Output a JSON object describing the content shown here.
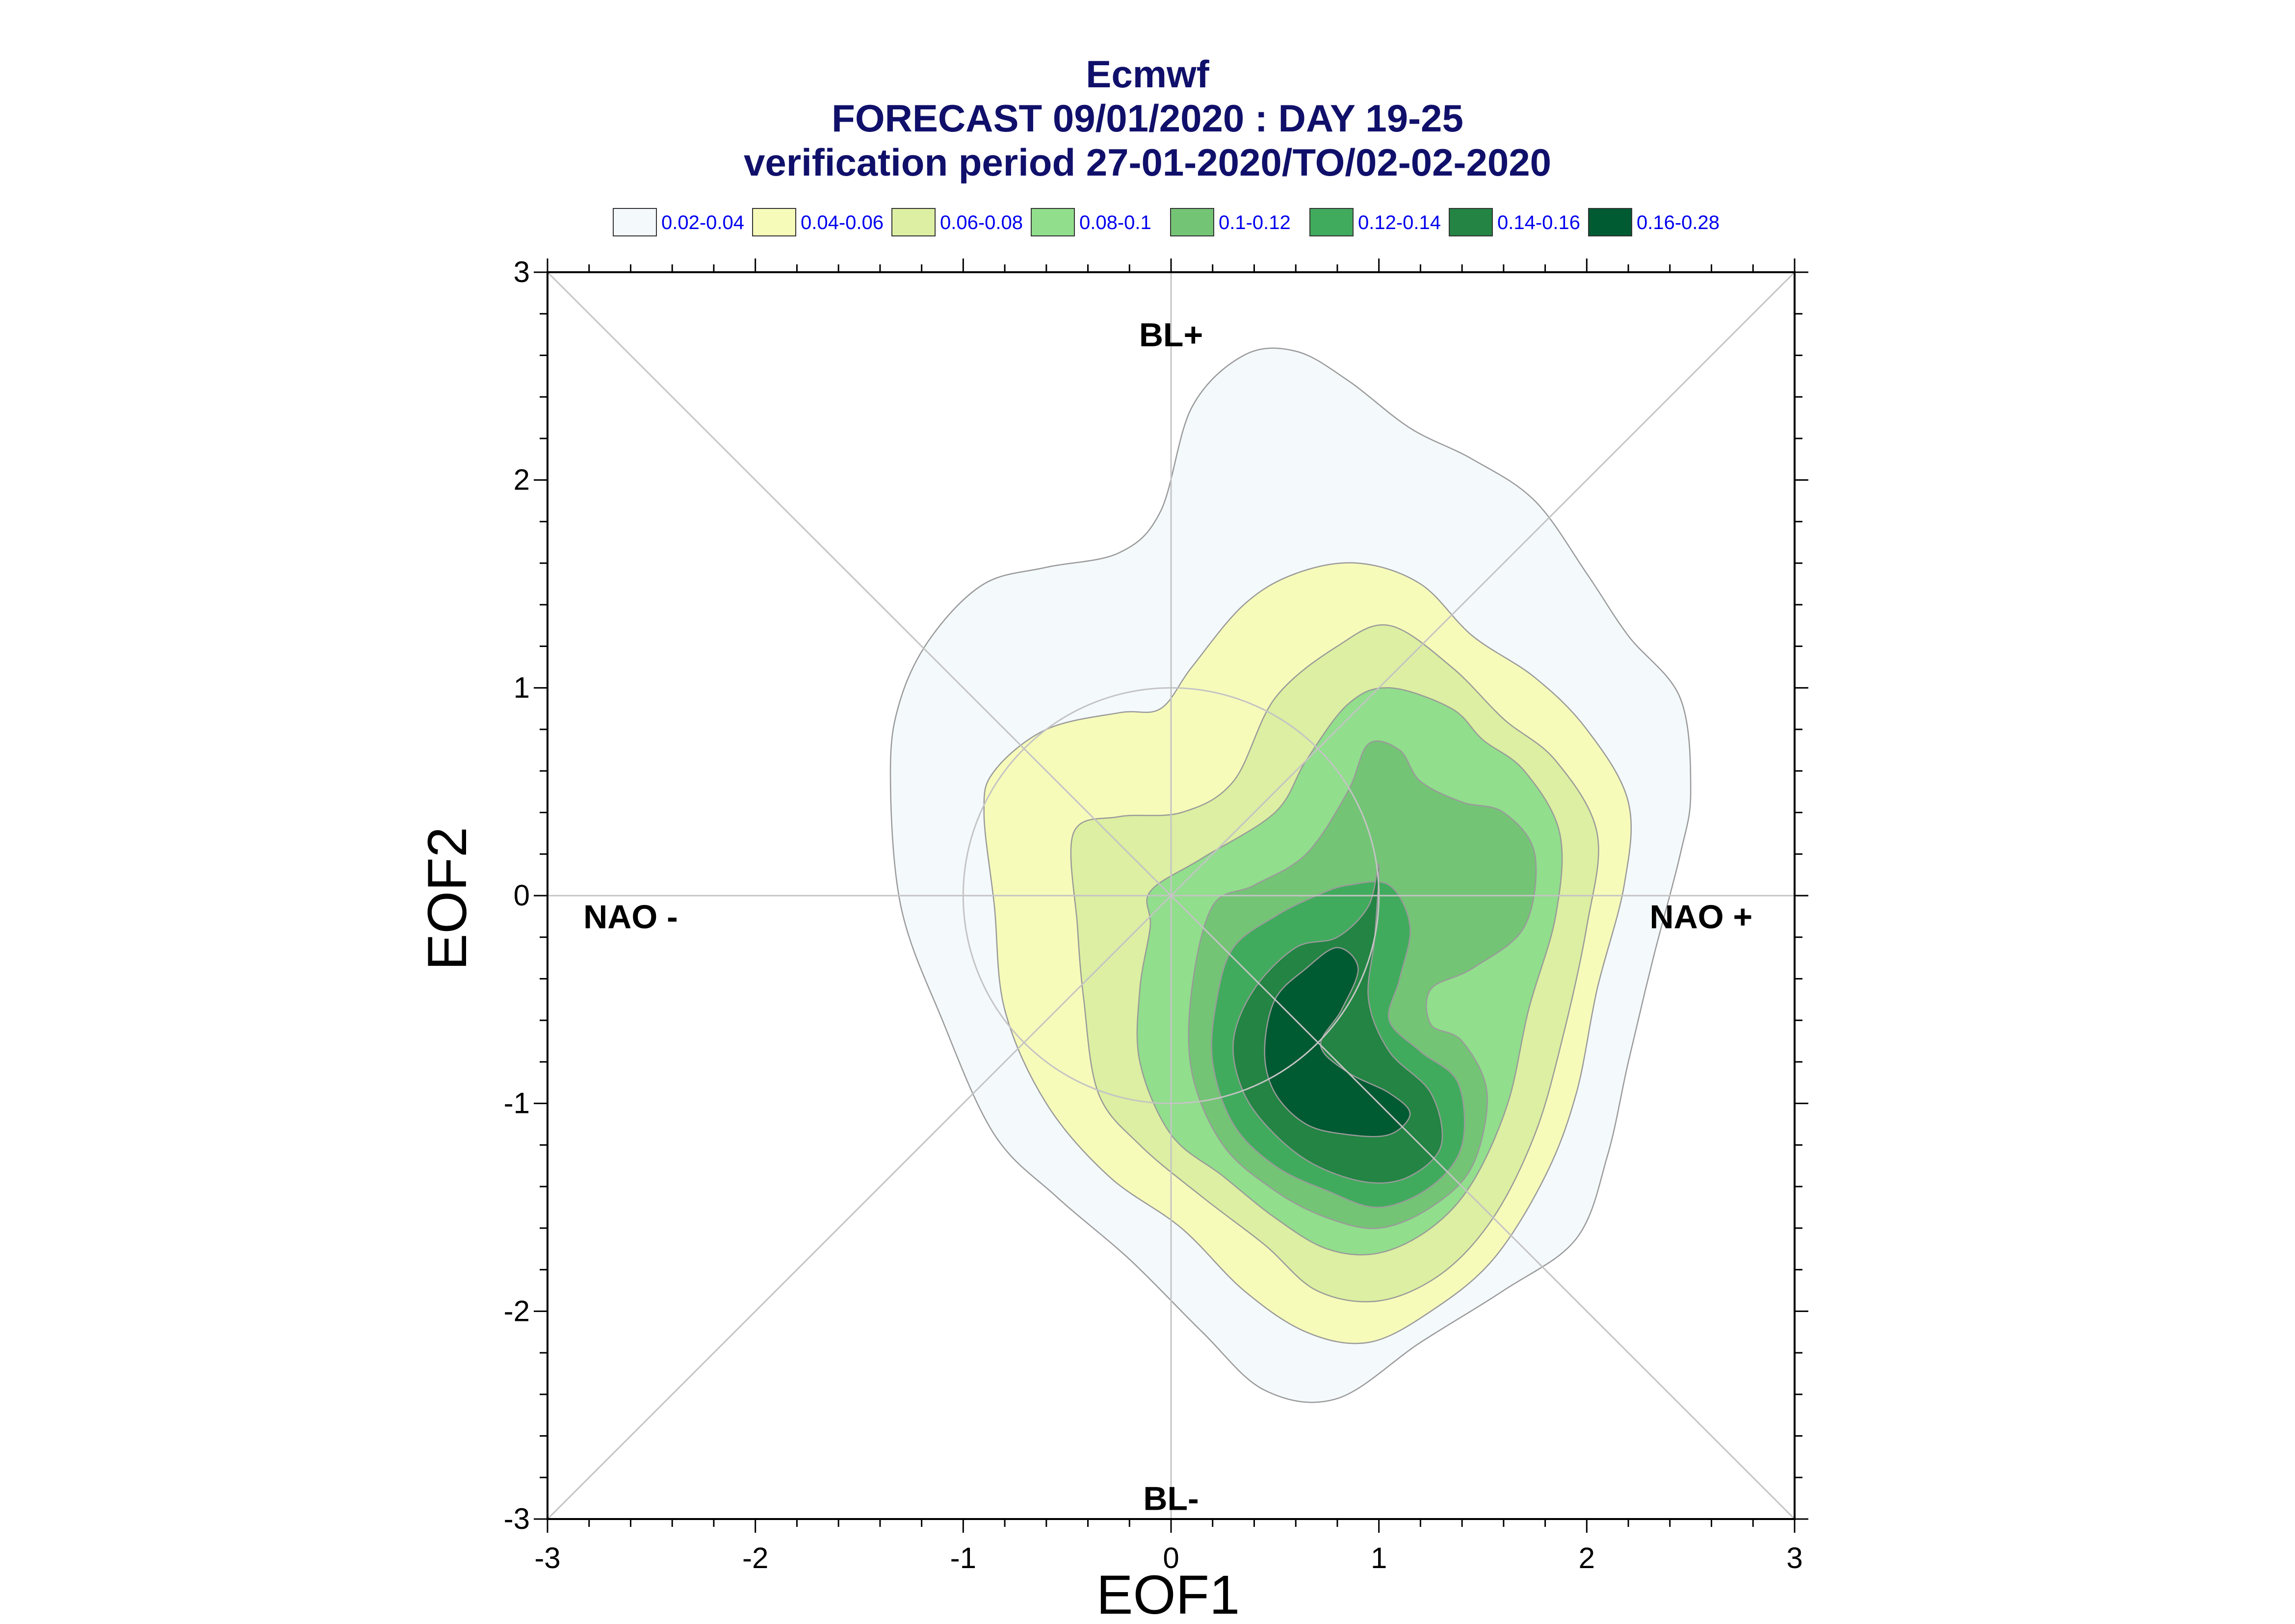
{
  "chart_data": {
    "type": "contour",
    "title_lines": [
      "Ecmwf",
      "FORECAST 09/01/2020 : DAY 19-25",
      "verification period 27-01-2020/TO/02-02-2020"
    ],
    "xlabel": "EOF1",
    "ylabel": "EOF2",
    "xlim": [
      -3,
      3
    ],
    "ylim": [
      -3,
      3
    ],
    "x_ticks": [
      -3,
      -2,
      -1,
      0,
      1,
      2,
      3
    ],
    "y_ticks": [
      -3,
      -2,
      -1,
      0,
      1,
      2,
      3
    ],
    "grid": false,
    "reference_lines": {
      "diagonals": true,
      "axes_through_origin": true,
      "unit_circle_radius": 1
    },
    "regime_labels": [
      {
        "text": "BL+",
        "x": 0,
        "y": 2.7
      },
      {
        "text": "BL-",
        "x": 0,
        "y": -2.9
      },
      {
        "text": "NAO -",
        "x": -2.6,
        "y": -0.1
      },
      {
        "text": "NAO +",
        "x": 2.55,
        "y": -0.1
      }
    ],
    "legend_position": "top",
    "levels": [
      {
        "label": "0.02-0.04",
        "color": "#f4f9fc"
      },
      {
        "label": "0.04-0.06",
        "color": "#f7fbba"
      },
      {
        "label": "0.06-0.08",
        "color": "#dcefa2"
      },
      {
        "label": "0.08-0.1",
        "color": "#91de8c"
      },
      {
        "label": "0.1-0.12",
        "color": "#74c476"
      },
      {
        "label": "0.12-0.14",
        "color": "#41ab5d"
      },
      {
        "label": "0.14-0.16",
        "color": "#238443"
      },
      {
        "label": "0.16-0.28",
        "color": "#005a32"
      }
    ],
    "contours": [
      {
        "level": "0.02-0.04",
        "points": [
          [
            -1.35,
            0.6
          ],
          [
            -1.3,
            0.95
          ],
          [
            -1.15,
            1.25
          ],
          [
            -0.9,
            1.5
          ],
          [
            -0.6,
            1.58
          ],
          [
            -0.25,
            1.65
          ],
          [
            -0.05,
            1.85
          ],
          [
            0.1,
            2.35
          ],
          [
            0.35,
            2.6
          ],
          [
            0.6,
            2.62
          ],
          [
            0.85,
            2.48
          ],
          [
            1.15,
            2.25
          ],
          [
            1.45,
            2.1
          ],
          [
            1.75,
            1.9
          ],
          [
            2.0,
            1.55
          ],
          [
            2.2,
            1.25
          ],
          [
            2.45,
            0.95
          ],
          [
            2.5,
            0.5
          ],
          [
            2.45,
            0.2
          ],
          [
            2.32,
            -0.3
          ],
          [
            2.2,
            -0.8
          ],
          [
            2.1,
            -1.25
          ],
          [
            1.95,
            -1.65
          ],
          [
            1.6,
            -1.9
          ],
          [
            1.2,
            -2.15
          ],
          [
            0.8,
            -2.42
          ],
          [
            0.45,
            -2.38
          ],
          [
            0.15,
            -2.1
          ],
          [
            -0.2,
            -1.75
          ],
          [
            -0.55,
            -1.45
          ],
          [
            -0.85,
            -1.15
          ],
          [
            -1.1,
            -0.6
          ],
          [
            -1.3,
            -0.05
          ]
        ]
      },
      {
        "level": "0.04-0.06",
        "points": [
          [
            -0.85,
            0.6
          ],
          [
            -0.6,
            0.8
          ],
          [
            -0.25,
            0.88
          ],
          [
            -0.05,
            0.9
          ],
          [
            0.1,
            1.1
          ],
          [
            0.35,
            1.4
          ],
          [
            0.6,
            1.55
          ],
          [
            0.9,
            1.6
          ],
          [
            1.2,
            1.5
          ],
          [
            1.45,
            1.25
          ],
          [
            1.75,
            1.05
          ],
          [
            2.0,
            0.8
          ],
          [
            2.2,
            0.45
          ],
          [
            2.18,
            0.05
          ],
          [
            2.05,
            -0.45
          ],
          [
            1.95,
            -0.95
          ],
          [
            1.8,
            -1.35
          ],
          [
            1.55,
            -1.75
          ],
          [
            1.25,
            -2.0
          ],
          [
            0.95,
            -2.15
          ],
          [
            0.65,
            -2.1
          ],
          [
            0.35,
            -1.9
          ],
          [
            0.05,
            -1.6
          ],
          [
            -0.3,
            -1.35
          ],
          [
            -0.6,
            -1.0
          ],
          [
            -0.8,
            -0.55
          ],
          [
            -0.85,
            -0.05
          ],
          [
            -0.9,
            0.4
          ]
        ]
      },
      {
        "level": "0.06-0.08",
        "points": [
          [
            -0.47,
            0.3
          ],
          [
            -0.25,
            0.38
          ],
          [
            0.05,
            0.4
          ],
          [
            0.3,
            0.55
          ],
          [
            0.5,
            0.95
          ],
          [
            0.8,
            1.2
          ],
          [
            1.05,
            1.3
          ],
          [
            1.35,
            1.1
          ],
          [
            1.6,
            0.85
          ],
          [
            1.85,
            0.65
          ],
          [
            2.05,
            0.3
          ],
          [
            2.0,
            -0.15
          ],
          [
            1.88,
            -0.7
          ],
          [
            1.75,
            -1.15
          ],
          [
            1.55,
            -1.55
          ],
          [
            1.3,
            -1.82
          ],
          [
            1.0,
            -1.95
          ],
          [
            0.7,
            -1.9
          ],
          [
            0.45,
            -1.68
          ],
          [
            0.15,
            -1.45
          ],
          [
            -0.15,
            -1.2
          ],
          [
            -0.35,
            -0.95
          ],
          [
            -0.42,
            -0.5
          ],
          [
            -0.45,
            -0.15
          ]
        ]
      },
      {
        "level": "0.08-0.1",
        "points": [
          [
            -0.1,
            0.02
          ],
          [
            0.15,
            0.18
          ],
          [
            0.5,
            0.4
          ],
          [
            0.65,
            0.65
          ],
          [
            0.85,
            0.92
          ],
          [
            1.05,
            1.0
          ],
          [
            1.35,
            0.9
          ],
          [
            1.5,
            0.75
          ],
          [
            1.7,
            0.6
          ],
          [
            1.87,
            0.3
          ],
          [
            1.85,
            -0.1
          ],
          [
            1.72,
            -0.55
          ],
          [
            1.62,
            -1.0
          ],
          [
            1.45,
            -1.38
          ],
          [
            1.25,
            -1.6
          ],
          [
            1.0,
            -1.72
          ],
          [
            0.75,
            -1.7
          ],
          [
            0.5,
            -1.55
          ],
          [
            0.25,
            -1.35
          ],
          [
            0.0,
            -1.15
          ],
          [
            -0.15,
            -0.8
          ],
          [
            -0.15,
            -0.45
          ],
          [
            -0.1,
            -0.15
          ]
        ]
      },
      {
        "level": "0.1-0.12",
        "points": [
          [
            0.2,
            -0.05
          ],
          [
            0.4,
            0.05
          ],
          [
            0.65,
            0.2
          ],
          [
            0.85,
            0.5
          ],
          [
            0.95,
            0.73
          ],
          [
            1.1,
            0.7
          ],
          [
            1.2,
            0.55
          ],
          [
            1.4,
            0.45
          ],
          [
            1.6,
            0.4
          ],
          [
            1.75,
            0.2
          ],
          [
            1.7,
            -0.15
          ],
          [
            1.45,
            -0.35
          ],
          [
            1.25,
            -0.45
          ],
          [
            1.25,
            -0.62
          ],
          [
            1.4,
            -0.7
          ],
          [
            1.52,
            -0.95
          ],
          [
            1.45,
            -1.3
          ],
          [
            1.25,
            -1.5
          ],
          [
            1.0,
            -1.6
          ],
          [
            0.75,
            -1.55
          ],
          [
            0.5,
            -1.42
          ],
          [
            0.25,
            -1.2
          ],
          [
            0.1,
            -0.85
          ],
          [
            0.1,
            -0.45
          ]
        ]
      },
      {
        "level": "0.12-0.14",
        "points": [
          [
            0.3,
            -0.25
          ],
          [
            0.5,
            -0.1
          ],
          [
            0.7,
            0.0
          ],
          [
            0.85,
            0.05
          ],
          [
            1.05,
            0.05
          ],
          [
            1.15,
            -0.15
          ],
          [
            1.1,
            -0.4
          ],
          [
            1.05,
            -0.6
          ],
          [
            1.2,
            -0.75
          ],
          [
            1.38,
            -0.9
          ],
          [
            1.4,
            -1.2
          ],
          [
            1.25,
            -1.4
          ],
          [
            1.0,
            -1.5
          ],
          [
            0.75,
            -1.42
          ],
          [
            0.5,
            -1.3
          ],
          [
            0.3,
            -1.1
          ],
          [
            0.2,
            -0.8
          ],
          [
            0.22,
            -0.5
          ]
        ]
      },
      {
        "level": "0.14-0.16",
        "points": [
          [
            0.4,
            -0.45
          ],
          [
            0.6,
            -0.25
          ],
          [
            0.8,
            -0.2
          ],
          [
            0.95,
            -0.05
          ],
          [
            1.0,
            0.15
          ],
          [
            0.98,
            -0.2
          ],
          [
            0.95,
            -0.5
          ],
          [
            1.05,
            -0.75
          ],
          [
            1.25,
            -0.95
          ],
          [
            1.3,
            -1.2
          ],
          [
            1.15,
            -1.35
          ],
          [
            0.95,
            -1.38
          ],
          [
            0.7,
            -1.3
          ],
          [
            0.5,
            -1.15
          ],
          [
            0.35,
            -0.95
          ],
          [
            0.3,
            -0.7
          ]
        ]
      },
      {
        "level": "0.16-0.28",
        "points": [
          [
            0.5,
            -0.5
          ],
          [
            0.65,
            -0.35
          ],
          [
            0.8,
            -0.25
          ],
          [
            0.9,
            -0.35
          ],
          [
            0.82,
            -0.55
          ],
          [
            0.72,
            -0.72
          ],
          [
            0.85,
            -0.85
          ],
          [
            1.05,
            -0.95
          ],
          [
            1.15,
            -1.05
          ],
          [
            1.05,
            -1.15
          ],
          [
            0.85,
            -1.15
          ],
          [
            0.65,
            -1.1
          ],
          [
            0.5,
            -0.95
          ],
          [
            0.45,
            -0.75
          ]
        ]
      }
    ]
  }
}
